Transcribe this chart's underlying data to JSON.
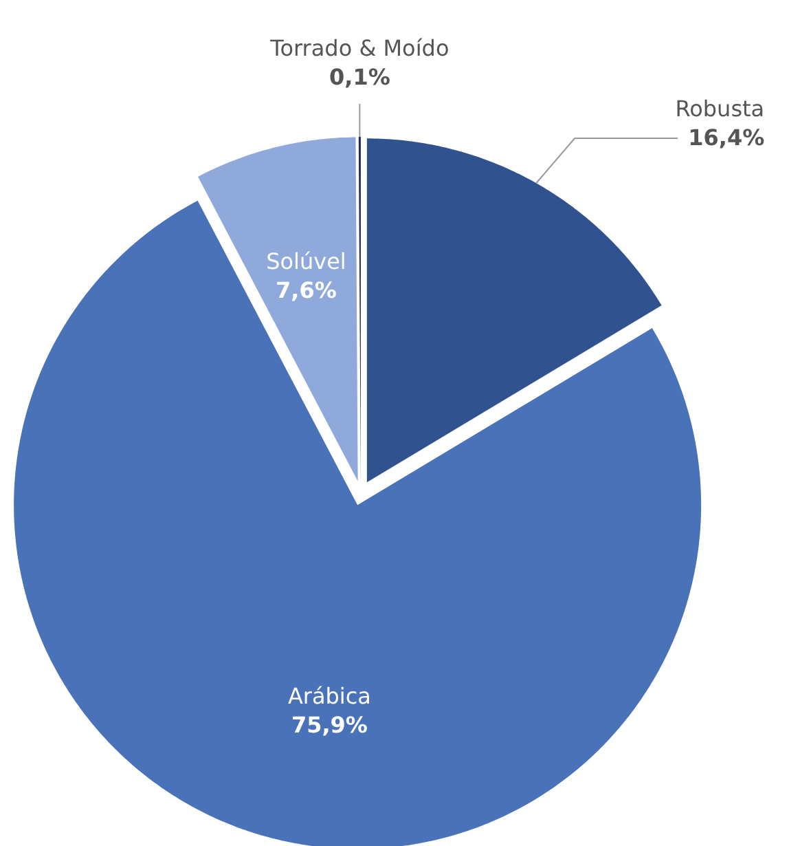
{
  "chart_data": {
    "type": "pie",
    "categories": [
      "Robusta",
      "Arábica",
      "Solúvel",
      "Torrado & Moído"
    ],
    "values": [
      16.4,
      75.9,
      7.6,
      0.1
    ],
    "value_labels": [
      "16,4%",
      "75,9%",
      "7,6%",
      "0,1%"
    ],
    "colors": [
      "#30538f",
      "#4a72b8",
      "#8fa9da",
      "#1e2f55"
    ]
  }
}
